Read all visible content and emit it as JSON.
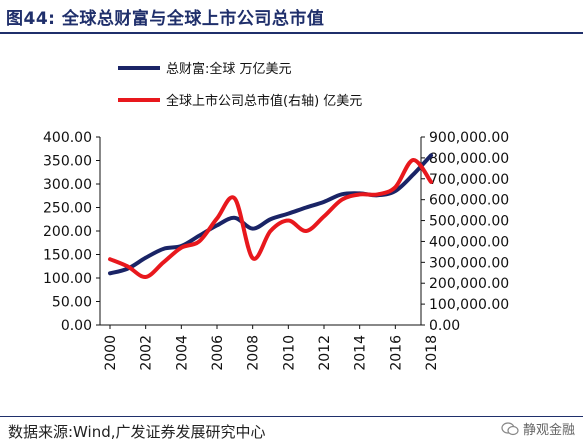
{
  "header": {
    "title": "图44:  全球总财富与全球上市公司总市值"
  },
  "footer": {
    "source": "数据来源:Wind,广发证券发展研究中心",
    "watermark": "静观金融"
  },
  "colors": {
    "series1": "#1a2466",
    "series2": "#e8181d",
    "title": "#1f2f6b"
  },
  "chart_data": {
    "type": "line",
    "title": "",
    "xlabel": "",
    "ylabel": "",
    "legend_position": "top",
    "grid": false,
    "xlim": [
      2000,
      2018
    ],
    "x_ticks": [
      "2000",
      "2002",
      "2004",
      "2006",
      "2008",
      "2010",
      "2012",
      "2014",
      "2016",
      "2018"
    ],
    "y_left": {
      "ylim": [
        0,
        400
      ],
      "ticks": [
        "0.00",
        "50.00",
        "100.00",
        "150.00",
        "200.00",
        "250.00",
        "300.00",
        "350.00",
        "400.00"
      ]
    },
    "y_right": {
      "ylim": [
        0,
        900000
      ],
      "ticks": [
        "0.00",
        "100,000.00",
        "200,000.00",
        "300,000.00",
        "400,000.00",
        "500,000.00",
        "600,000.00",
        "700,000.00",
        "800,000.00",
        "900,000.00"
      ]
    },
    "series": [
      {
        "name": "总财富:全球 万亿美元",
        "axis": "left",
        "x": [
          2000,
          2001,
          2002,
          2003,
          2004,
          2005,
          2006,
          2007,
          2008,
          2009,
          2010,
          2011,
          2012,
          2013,
          2014,
          2015,
          2016,
          2017,
          2018
        ],
        "values": [
          110,
          120,
          143,
          162,
          168,
          190,
          212,
          228,
          205,
          225,
          237,
          250,
          262,
          278,
          280,
          276,
          285,
          320,
          361
        ]
      },
      {
        "name": "全球上市公司总市值(右轴) 亿美元",
        "axis": "right",
        "x": [
          2000,
          2001,
          2002,
          2003,
          2004,
          2005,
          2006,
          2007,
          2008,
          2009,
          2010,
          2011,
          2012,
          2013,
          2014,
          2015,
          2016,
          2017,
          2018
        ],
        "values": [
          315000,
          280000,
          230000,
          300000,
          370000,
          400000,
          510000,
          605000,
          320000,
          450000,
          500000,
          450000,
          520000,
          600000,
          625000,
          625000,
          660000,
          790000,
          685000
        ]
      }
    ]
  }
}
